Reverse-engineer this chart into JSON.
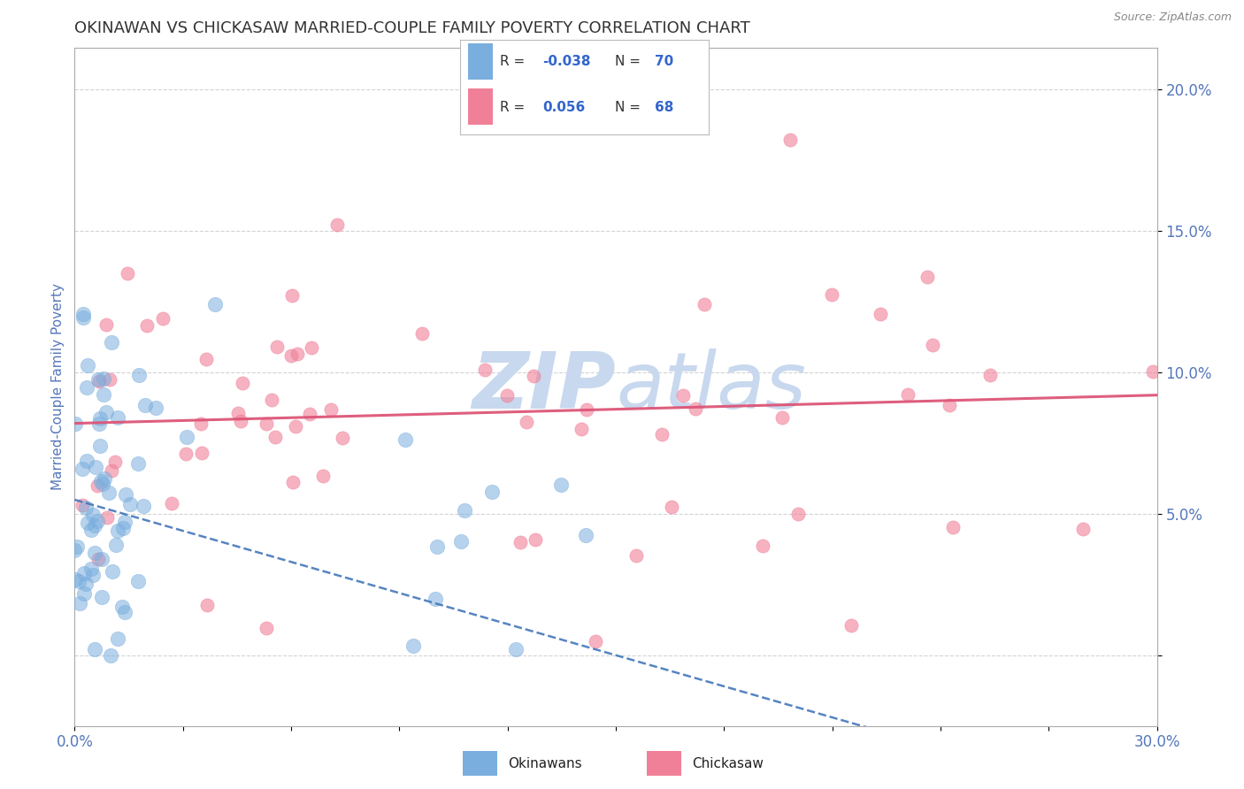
{
  "title": "OKINAWAN VS CHICKASAW MARRIED-COUPLE FAMILY POVERTY CORRELATION CHART",
  "source": "Source: ZipAtlas.com",
  "ylabel_label": "Married-Couple Family Poverty",
  "xmin": 0.0,
  "xmax": 0.3,
  "ymin": -0.025,
  "ymax": 0.215,
  "y_ticks": [
    0.0,
    0.05,
    0.1,
    0.15,
    0.2
  ],
  "y_tick_labels": [
    "",
    "5.0%",
    "10.0%",
    "15.0%",
    "20.0%"
  ],
  "R_okinawan": -0.038,
  "N_okinawan": 70,
  "R_chickasaw": 0.056,
  "N_chickasaw": 68,
  "okinawan_color": "#7aaede",
  "chickasaw_color": "#f08098",
  "trendline_okinawan_color": "#4477bb",
  "trendline_chickasaw_color": "#dd5577",
  "grid_color": "#c8c8c8",
  "watermark_text": "ZIPatlas",
  "watermark_color": "#dde8f5",
  "background_color": "#ffffff",
  "title_color": "#333333",
  "axis_label_color": "#5577bb",
  "legend_R_color": "#3366cc",
  "legend_N_color": "#3366cc"
}
